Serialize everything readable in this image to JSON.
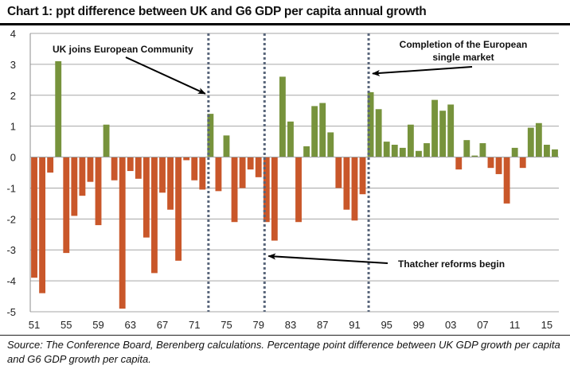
{
  "chart_data": {
    "type": "bar",
    "title": "Chart 1: ppt difference between UK and G6 GDP per capita annual growth",
    "xlabel": "",
    "ylabel": "",
    "ylim": [
      -5,
      4
    ],
    "yticks": [
      4,
      3,
      2,
      1,
      0,
      -1,
      -2,
      -3,
      -4,
      -5
    ],
    "grid": true,
    "legend": "none",
    "colors": {
      "positive": "#77933c",
      "negative": "#c9572a",
      "event_line": "#58657a",
      "grid": "#a6a6a6"
    },
    "categories": [
      1951,
      1952,
      1953,
      1954,
      1955,
      1956,
      1957,
      1958,
      1959,
      1960,
      1961,
      1962,
      1963,
      1964,
      1965,
      1966,
      1967,
      1968,
      1969,
      1970,
      1971,
      1972,
      1973,
      1974,
      1975,
      1976,
      1977,
      1978,
      1979,
      1980,
      1981,
      1982,
      1983,
      1984,
      1985,
      1986,
      1987,
      1988,
      1989,
      1990,
      1991,
      1992,
      1993,
      1994,
      1995,
      1996,
      1997,
      1998,
      1999,
      2000,
      2001,
      2002,
      2003,
      2004,
      2005,
      2006,
      2007,
      2008,
      2009,
      2010,
      2011,
      2012,
      2013,
      2014,
      2015,
      2016
    ],
    "xtick_labels": [
      {
        "year": 1951,
        "label": "51"
      },
      {
        "year": 1955,
        "label": "55"
      },
      {
        "year": 1959,
        "label": "59"
      },
      {
        "year": 1963,
        "label": "63"
      },
      {
        "year": 1967,
        "label": "67"
      },
      {
        "year": 1971,
        "label": "71"
      },
      {
        "year": 1975,
        "label": "75"
      },
      {
        "year": 1979,
        "label": "79"
      },
      {
        "year": 1983,
        "label": "83"
      },
      {
        "year": 1987,
        "label": "87"
      },
      {
        "year": 1991,
        "label": "91"
      },
      {
        "year": 1995,
        "label": "95"
      },
      {
        "year": 1999,
        "label": "99"
      },
      {
        "year": 2003,
        "label": "03"
      },
      {
        "year": 2007,
        "label": "07"
      },
      {
        "year": 2011,
        "label": "11"
      },
      {
        "year": 2015,
        "label": "15"
      }
    ],
    "values": [
      -3.9,
      -4.4,
      -0.5,
      3.1,
      -3.1,
      -1.9,
      -1.25,
      -0.8,
      -2.2,
      1.05,
      -0.75,
      -4.9,
      -0.45,
      -0.7,
      -2.6,
      -3.75,
      -1.15,
      -1.7,
      -3.35,
      -0.1,
      -0.75,
      -1.05,
      1.4,
      -1.1,
      0.7,
      -2.1,
      -1.0,
      -0.4,
      -0.65,
      -2.1,
      -2.7,
      2.6,
      1.15,
      -2.1,
      0.35,
      1.65,
      1.75,
      0.8,
      -1.0,
      -1.7,
      -2.05,
      -1.2,
      2.1,
      1.55,
      0.5,
      0.4,
      0.3,
      1.05,
      0.2,
      0.45,
      1.85,
      1.5,
      1.7,
      -0.4,
      0.55,
      0.05,
      0.45,
      -0.35,
      -0.55,
      -1.5,
      0.3,
      -0.35,
      0.95,
      1.1,
      0.4,
      0.25
    ],
    "event_lines": [
      {
        "year": 1973,
        "label": "UK joins European Community"
      },
      {
        "year": 1980,
        "label": "Thatcher reforms begin"
      },
      {
        "year": 1993,
        "label": "Completion of the European single market",
        "label_lines": [
          "Completion of the European",
          "single market"
        ]
      }
    ]
  },
  "footer": {
    "source": "Source: The Conference Board, Berenberg calculations. Percentage point difference between UK GDP growth per capita and G6 GDP growth per capita."
  }
}
